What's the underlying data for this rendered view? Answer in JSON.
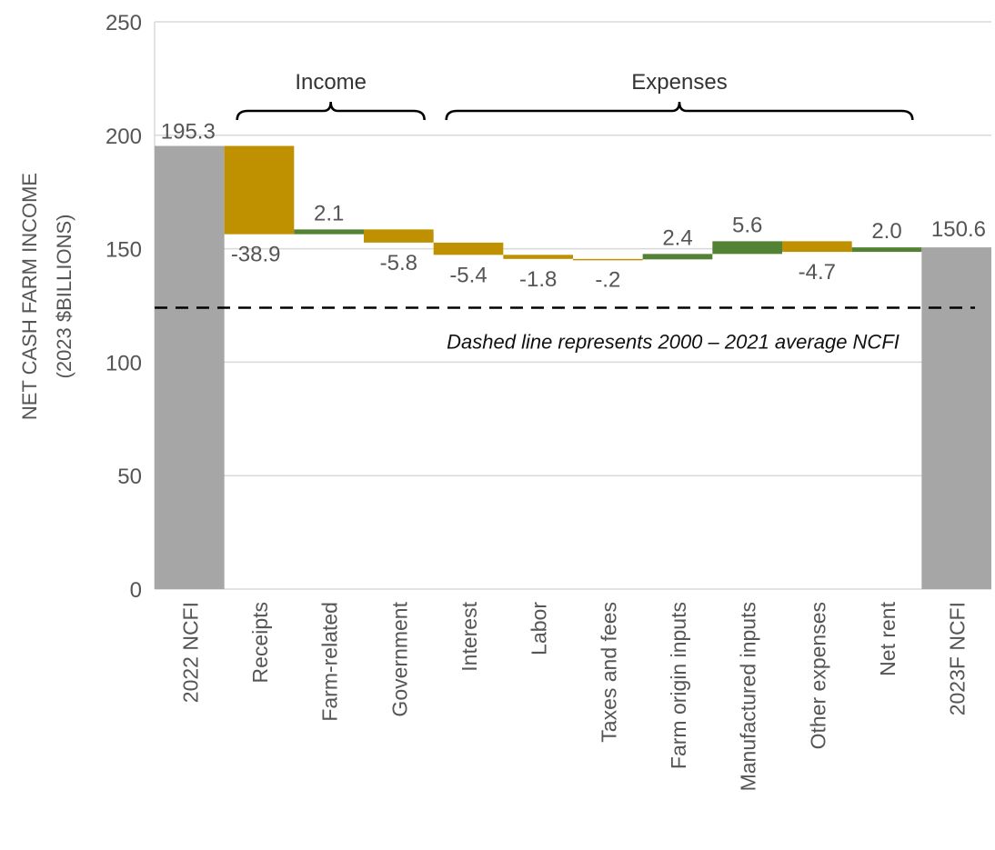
{
  "chart_data": {
    "type": "bar",
    "subtype": "waterfall",
    "title": "",
    "ylabel_lines": [
      "NET CASH FARM INCOME",
      "(2023 $BILLIONS)"
    ],
    "xlabel": "",
    "ylim": [
      0,
      250
    ],
    "yticks": [
      0,
      50,
      100,
      150,
      200,
      250
    ],
    "grid": true,
    "categories": [
      "2022 NCFI",
      "Receipts",
      "Farm-related",
      "Government",
      "Interest",
      "Labor",
      "Taxes and fees",
      "Farm origin inputs",
      "Manufactured inputs",
      "Other expenses",
      "Net rent",
      "2023F NCFI"
    ],
    "bars": [
      {
        "category": "2022 NCFI",
        "kind": "total",
        "start": 0,
        "end": 195.3,
        "label": "195.3"
      },
      {
        "category": "Receipts",
        "kind": "decrease",
        "start": 195.3,
        "end": 156.4,
        "label": "-38.9"
      },
      {
        "category": "Farm-related",
        "kind": "increase",
        "start": 156.4,
        "end": 158.5,
        "label": "2.1"
      },
      {
        "category": "Government",
        "kind": "decrease",
        "start": 158.5,
        "end": 152.7,
        "label": "-5.8"
      },
      {
        "category": "Interest",
        "kind": "decrease",
        "start": 152.7,
        "end": 147.3,
        "label": "-5.4"
      },
      {
        "category": "Labor",
        "kind": "decrease",
        "start": 147.3,
        "end": 145.5,
        "label": "-1.8"
      },
      {
        "category": "Taxes and fees",
        "kind": "decrease",
        "start": 145.5,
        "end": 145.3,
        "label": "-.2"
      },
      {
        "category": "Farm origin inputs",
        "kind": "increase",
        "start": 145.3,
        "end": 147.7,
        "label": "2.4"
      },
      {
        "category": "Manufactured inputs",
        "kind": "increase",
        "start": 147.7,
        "end": 153.3,
        "label": "5.6"
      },
      {
        "category": "Other expenses",
        "kind": "decrease",
        "start": 153.3,
        "end": 148.6,
        "label": "-4.7"
      },
      {
        "category": "Net rent",
        "kind": "increase",
        "start": 148.6,
        "end": 150.6,
        "label": "2.0"
      },
      {
        "category": "2023F NCFI",
        "kind": "total",
        "start": 0,
        "end": 150.6,
        "label": "150.6"
      }
    ],
    "groups": [
      {
        "label": "Income",
        "from": "Receipts",
        "to": "Government"
      },
      {
        "label": "Expenses",
        "from": "Interest",
        "to": "Net rent"
      }
    ],
    "reference_line": {
      "value": 124,
      "style": "dashed",
      "annotation": "Dashed line represents 2000 – 2021 average NCFI"
    },
    "colors": {
      "total": "#a6a6a6",
      "decrease": "#bf9000",
      "increase": "#548235",
      "grid": "#d9d9d9",
      "reference": "#000000"
    }
  }
}
